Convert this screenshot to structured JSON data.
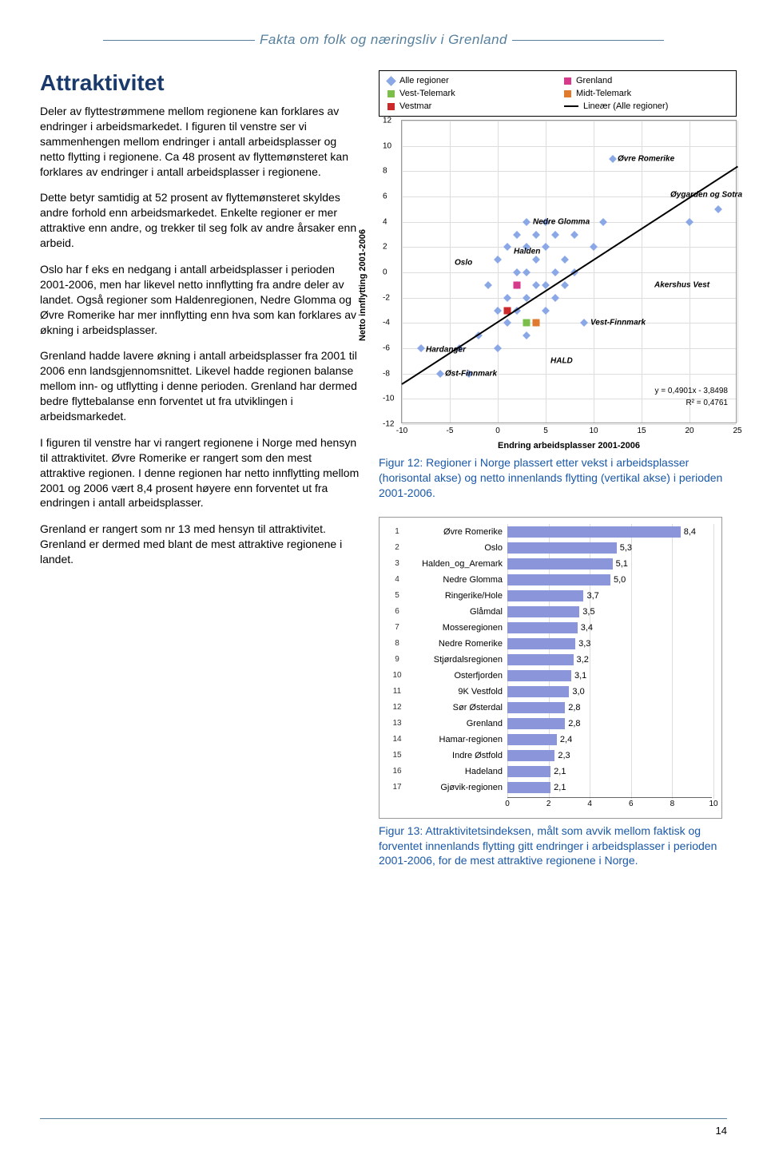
{
  "header": "Fakta om folk og næringsliv i Grenland",
  "title": "Attraktivitet",
  "paragraphs": [
    "Deler av flyttestrømmene mellom regionene kan forklares av endringer i arbeidsmarkedet. I figuren til venstre ser vi sammenhengen mellom endringer i antall arbeidsplasser og netto flytting i regionene. Ca 48 prosent av flyttemønsteret kan forklares av endringer i antall arbeidsplasser i regionene.",
    "Dette betyr samtidig at 52 prosent av flyttemønsteret skyldes andre forhold enn arbeidsmarkedet. Enkelte regioner er mer attraktive enn andre, og trekker til seg folk av andre årsaker enn arbeid.",
    "Oslo har f eks en nedgang i antall arbeidsplasser i perioden 2001-2006, men har likevel netto innflytting fra andre deler av landet. Også regioner som Haldenregionen, Nedre Glomma og Øvre Romerike har mer innflytting enn hva som kan forklares av økning i arbeidsplasser.",
    "Grenland hadde lavere økning i antall arbeidsplasser fra 2001 til 2006 enn landsgjennomsnittet. Likevel hadde regionen balanse mellom inn- og utflytting i denne perioden. Grenland har dermed bedre flyttebalanse enn forventet ut fra utviklingen i arbeidsmarkedet.",
    "I figuren til venstre har vi rangert regionene i Norge med hensyn til attraktivitet. Øvre Romerike er rangert som den mest attraktive regionen. I denne regionen har netto innflytting mellom 2001 og 2006 vært 8,4 prosent høyere enn forventet ut fra endringen i antall arbeidsplasser.",
    "Grenland er rangert som nr 13 med hensyn til attraktivitet. Grenland er dermed med blant de mest attraktive regionene i landet."
  ],
  "scatter": {
    "legend": [
      {
        "label": "Alle regioner",
        "color": "#8aa7e6",
        "shape": "diamond"
      },
      {
        "label": "Grenland",
        "color": "#d63a8a",
        "shape": "square"
      },
      {
        "label": "Vest-Telemark",
        "color": "#7bbf4a",
        "shape": "square"
      },
      {
        "label": "Midt-Telemark",
        "color": "#e07b2e",
        "shape": "square"
      },
      {
        "label": "Vestmar",
        "color": "#cc2a2a",
        "shape": "square"
      },
      {
        "label": "Lineær (Alle regioner)",
        "color": "#000000",
        "shape": "line"
      }
    ],
    "ylabel": "Netto innflytting 2001-2006",
    "xlabel": "Endring arbeidsplasser 2001-2006",
    "ylim": [
      -12,
      12
    ],
    "xlim": [
      -10,
      25
    ],
    "yticks": [
      -12,
      -10,
      -8,
      -6,
      -4,
      -2,
      0,
      2,
      4,
      6,
      8,
      10,
      12
    ],
    "xticks": [
      -10,
      -5,
      0,
      5,
      10,
      15,
      20,
      25
    ],
    "grid_color": "#dddddd",
    "point_color": "#8aa7e6",
    "points_all": [
      [
        -8,
        -6
      ],
      [
        -6,
        -8
      ],
      [
        -4,
        -6
      ],
      [
        -3,
        -8
      ],
      [
        -2,
        -5
      ],
      [
        -1,
        -1
      ],
      [
        0,
        -3
      ],
      [
        0,
        -6
      ],
      [
        0,
        1
      ],
      [
        1,
        -4
      ],
      [
        1,
        -2
      ],
      [
        1,
        2
      ],
      [
        2,
        -3
      ],
      [
        2,
        -1
      ],
      [
        2,
        0
      ],
      [
        2,
        3
      ],
      [
        3,
        -5
      ],
      [
        3,
        -2
      ],
      [
        3,
        0
      ],
      [
        3,
        2
      ],
      [
        3,
        4
      ],
      [
        4,
        -4
      ],
      [
        4,
        -1
      ],
      [
        4,
        1
      ],
      [
        4,
        3
      ],
      [
        5,
        -3
      ],
      [
        5,
        -1
      ],
      [
        5,
        2
      ],
      [
        5,
        4
      ],
      [
        6,
        -2
      ],
      [
        6,
        0
      ],
      [
        6,
        3
      ],
      [
        7,
        -1
      ],
      [
        7,
        1
      ],
      [
        8,
        0
      ],
      [
        8,
        3
      ],
      [
        9,
        -4
      ],
      [
        10,
        2
      ],
      [
        11,
        4
      ],
      [
        12,
        9
      ],
      [
        20,
        4
      ],
      [
        23,
        5
      ]
    ],
    "highlights": [
      {
        "x": 2,
        "y": -1,
        "color": "#d63a8a"
      },
      {
        "x": 3,
        "y": -4,
        "color": "#7bbf4a"
      },
      {
        "x": 4,
        "y": -4,
        "color": "#e07b2e"
      },
      {
        "x": 1,
        "y": -3,
        "color": "#cc2a2a"
      }
    ],
    "labels": [
      {
        "text": "Øvre Romerike",
        "x": 12,
        "y": 9,
        "dx": 6,
        "dy": 0
      },
      {
        "text": "Nedre Glomma",
        "x": 3,
        "y": 4,
        "dx": 8,
        "dy": 0
      },
      {
        "text": "Øygarden og Sotra",
        "x": 23,
        "y": 5,
        "dx": -60,
        "dy": -18
      },
      {
        "text": "Halden",
        "x": 1,
        "y": 2,
        "dx": 8,
        "dy": 6
      },
      {
        "text": "Oslo",
        "x": -2,
        "y": 1,
        "dx": -30,
        "dy": 4
      },
      {
        "text": "Akershus Vest",
        "x": 20,
        "y": -1,
        "dx": -44,
        "dy": 0
      },
      {
        "text": "Vest-Finnmark",
        "x": 9,
        "y": -4,
        "dx": 8,
        "dy": 0
      },
      {
        "text": "Hardanger",
        "x": -8,
        "y": -6,
        "dx": 6,
        "dy": 2
      },
      {
        "text": "HALD",
        "x": 5,
        "y": -7,
        "dx": 6,
        "dy": 0
      },
      {
        "text": "Øst-Finnmark",
        "x": -6,
        "y": -8,
        "dx": 6,
        "dy": 0
      }
    ],
    "trend": {
      "x1": -10,
      "y1": -8.8,
      "x2": 25,
      "y2": 8.4
    },
    "formula1": "y = 0,4901x - 3,8498",
    "formula2": "R² = 0,4761"
  },
  "fig12_caption": "Figur 12: Regioner i Norge plassert etter vekst i arbeidsplasser (horisontal akse) og netto innenlands flytting (vertikal akse) i perioden 2001-2006.",
  "bars": {
    "color": "#8a96d9",
    "xmax": 10,
    "xticks": [
      0,
      2,
      4,
      6,
      8,
      10
    ],
    "rows": [
      {
        "rank": 1,
        "name": "Øvre Romerike",
        "value": 8.4,
        "label": "8,4"
      },
      {
        "rank": 2,
        "name": "Oslo",
        "value": 5.3,
        "label": "5,3"
      },
      {
        "rank": 3,
        "name": "Halden_og_Aremark",
        "value": 5.1,
        "label": "5,1"
      },
      {
        "rank": 4,
        "name": "Nedre Glomma",
        "value": 5.0,
        "label": "5,0"
      },
      {
        "rank": 5,
        "name": "Ringerike/Hole",
        "value": 3.7,
        "label": "3,7"
      },
      {
        "rank": 6,
        "name": "Glåmdal",
        "value": 3.5,
        "label": "3,5"
      },
      {
        "rank": 7,
        "name": "Mosseregionen",
        "value": 3.4,
        "label": "3,4"
      },
      {
        "rank": 8,
        "name": "Nedre Romerike",
        "value": 3.3,
        "label": "3,3"
      },
      {
        "rank": 9,
        "name": "Stjørdalsregionen",
        "value": 3.2,
        "label": "3,2"
      },
      {
        "rank": 10,
        "name": "Osterfjorden",
        "value": 3.1,
        "label": "3,1"
      },
      {
        "rank": 11,
        "name": "9K Vestfold",
        "value": 3.0,
        "label": "3,0"
      },
      {
        "rank": 12,
        "name": "Sør Østerdal",
        "value": 2.8,
        "label": "2,8"
      },
      {
        "rank": 13,
        "name": "Grenland",
        "value": 2.8,
        "label": "2,8"
      },
      {
        "rank": 14,
        "name": "Hamar-regionen",
        "value": 2.4,
        "label": "2,4"
      },
      {
        "rank": 15,
        "name": "Indre Østfold",
        "value": 2.3,
        "label": "2,3"
      },
      {
        "rank": 16,
        "name": "Hadeland",
        "value": 2.1,
        "label": "2,1"
      },
      {
        "rank": 17,
        "name": "Gjøvik-regionen",
        "value": 2.1,
        "label": "2,1"
      }
    ]
  },
  "fig13_caption": "Figur 13: Attraktivitetsindeksen, målt som avvik mellom faktisk og forventet innenlands flytting gitt endringer i arbeidsplasser i perioden 2001-2006, for de mest attraktive regionene i Norge.",
  "page_number": "14"
}
